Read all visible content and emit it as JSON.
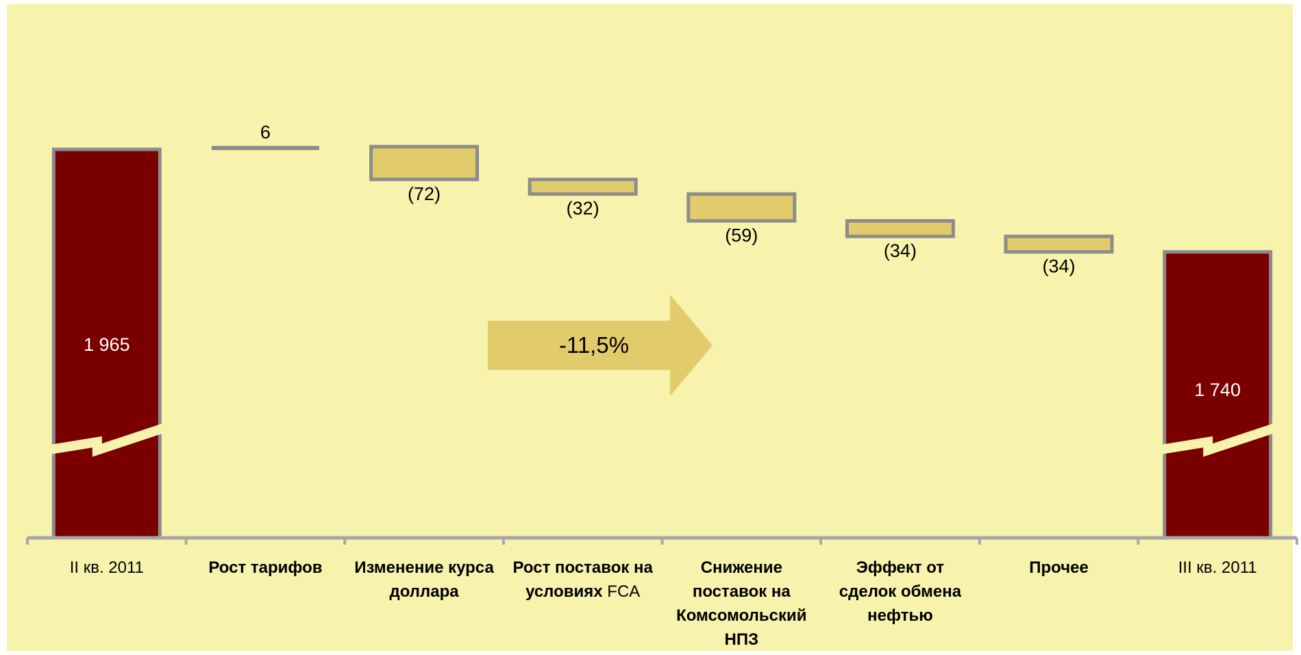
{
  "chart_data": {
    "type": "bar",
    "subtype": "waterfall",
    "categories": [
      {
        "lines": [
          {
            "text": "II кв. 2011",
            "bold": false
          }
        ]
      },
      {
        "lines": [
          {
            "text": "Рост тарифов",
            "bold": true
          }
        ]
      },
      {
        "lines": [
          {
            "text": "Изменение курса",
            "bold": true
          },
          {
            "text": "доллара",
            "bold": true
          }
        ]
      },
      {
        "lines": [
          {
            "text": "Рост поставок на",
            "bold": true
          },
          {
            "segments": [
              {
                "text": "условиях ",
                "bold": true
              },
              {
                "text": "FCA",
                "bold": false
              }
            ]
          }
        ]
      },
      {
        "lines": [
          {
            "text": "Снижение",
            "bold": true
          },
          {
            "text": "поставок на",
            "bold": true
          },
          {
            "text": "Комсомольский",
            "bold": true
          },
          {
            "text": "НПЗ",
            "bold": true
          }
        ]
      },
      {
        "lines": [
          {
            "text": "Эффект от",
            "bold": true
          },
          {
            "text": "сделок обмена",
            "bold": true
          },
          {
            "text": "нефтью",
            "bold": true
          }
        ]
      },
      {
        "lines": [
          {
            "text": "Прочее",
            "bold": true
          }
        ]
      },
      {
        "lines": [
          {
            "text": "III кв. 2011",
            "bold": false
          }
        ]
      }
    ],
    "bars": [
      {
        "kind": "total",
        "value": 1965,
        "label": "1 965"
      },
      {
        "kind": "delta",
        "value": 6,
        "label": "6"
      },
      {
        "kind": "delta",
        "value": -72,
        "label": "(72)"
      },
      {
        "kind": "delta",
        "value": -32,
        "label": "(32)"
      },
      {
        "kind": "delta",
        "value": -59,
        "label": "(59)"
      },
      {
        "kind": "delta",
        "value": -34,
        "label": "(34)"
      },
      {
        "kind": "delta",
        "value": -34,
        "label": "(34)"
      },
      {
        "kind": "total",
        "value": 1740,
        "label": "1 740"
      }
    ],
    "annotation": {
      "text": "-11,5%",
      "shape": "arrow-right"
    },
    "axis_break": true,
    "colors": {
      "background": "#F7F2AC",
      "total_fill": "#7A0000",
      "delta_fill": "#E2CB6A",
      "bar_stroke": "#8C8C8C",
      "arrow_fill": "#E2CB6A",
      "axis": "#A6A6A6",
      "text": "#000000",
      "total_label": "#FFFFFF"
    },
    "grid": false,
    "legend": "none"
  }
}
